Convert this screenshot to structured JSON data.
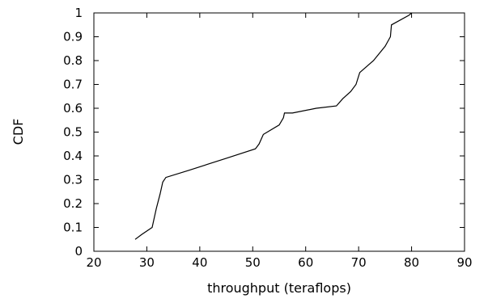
{
  "chart_data": {
    "type": "line",
    "title": "",
    "xlabel": "throughput (teraflops)",
    "ylabel": "CDF",
    "xlim": [
      20,
      90
    ],
    "ylim": [
      0,
      1
    ],
    "xticks": [
      20,
      30,
      40,
      50,
      60,
      70,
      80,
      90
    ],
    "yticks": [
      0,
      0.1,
      0.2,
      0.3,
      0.4,
      0.5,
      0.6,
      0.7,
      0.8,
      0.9,
      1
    ],
    "xtick_labels": [
      "20",
      "30",
      "40",
      "50",
      "60",
      "70",
      "80",
      "90"
    ],
    "ytick_labels": [
      "0",
      "0.1",
      "0.2",
      "0.3",
      "0.4",
      "0.5",
      "0.6",
      "0.7",
      "0.8",
      "0.9",
      "1"
    ],
    "grid": false,
    "legend": false,
    "series": [
      {
        "color": "#000000",
        "x": [
          27.8,
          29.0,
          31.0,
          31.8,
          32.5,
          33.0,
          33.6,
          38.0,
          45.0,
          50.5,
          51.2,
          52.0,
          55.0,
          55.8,
          56.0,
          57.5,
          62.0,
          65.8,
          67.0,
          68.5,
          69.5,
          70.2,
          72.8,
          75.0,
          76.0,
          76.2,
          79.5,
          80.0
        ],
        "y": [
          0.05,
          0.07,
          0.1,
          0.18,
          0.24,
          0.29,
          0.31,
          0.34,
          0.39,
          0.43,
          0.45,
          0.49,
          0.53,
          0.56,
          0.58,
          0.58,
          0.6,
          0.61,
          0.64,
          0.67,
          0.7,
          0.75,
          0.8,
          0.86,
          0.9,
          0.95,
          0.99,
          1.0
        ]
      }
    ]
  }
}
